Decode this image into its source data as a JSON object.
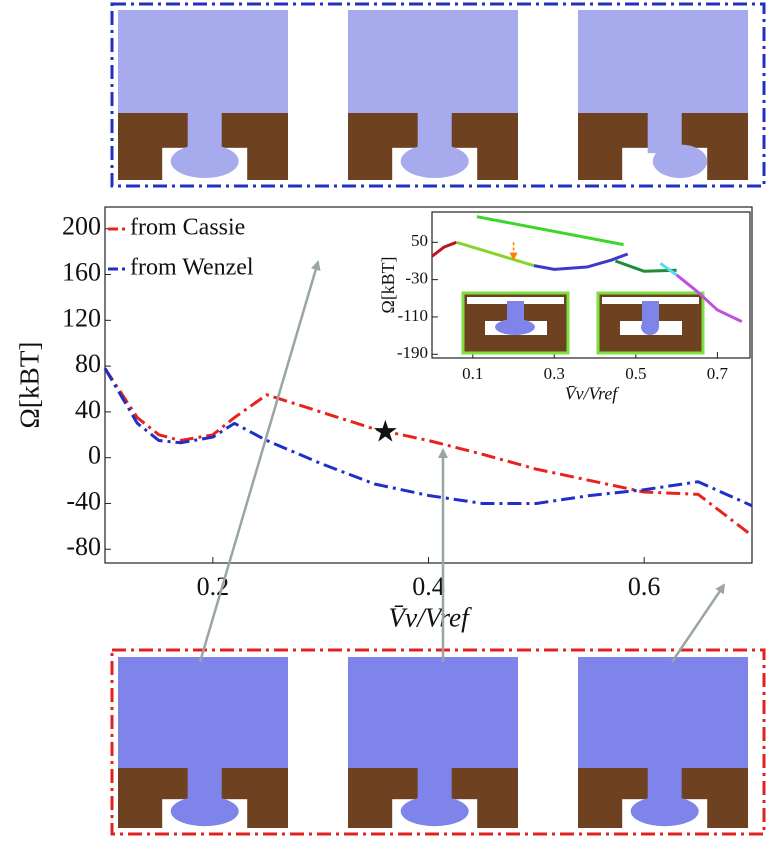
{
  "chart_data": [
    {
      "type": "line",
      "x_label": "V̄v/Vref",
      "y_label": "Ω[kBT]",
      "xlim": [
        0.1,
        0.7
      ],
      "ylim": [
        -92,
        219
      ],
      "xticks": [
        0.2,
        0.4,
        0.6
      ],
      "yticks": [
        -80,
        -40,
        0,
        40,
        80,
        120,
        160,
        200
      ],
      "legend": "upper left",
      "linestyle": "dashdot",
      "x": [
        0.1,
        0.13,
        0.15,
        0.17,
        0.2,
        0.22,
        0.25,
        0.3,
        0.35,
        0.4,
        0.45,
        0.5,
        0.55,
        0.6,
        0.65,
        0.7
      ],
      "series": [
        {
          "name": "from Cassie",
          "color": "#e8231e",
          "values": [
            78,
            35,
            20,
            15,
            20,
            35,
            55,
            40,
            25,
            15,
            3,
            -10,
            -20,
            -30,
            -32,
            -68
          ]
        },
        {
          "name": "from Wenzel",
          "color": "#1f2fc8",
          "values": [
            78,
            30,
            15,
            13,
            18,
            30,
            15,
            -5,
            -23,
            -33,
            -40,
            -40,
            -33,
            -28,
            -21,
            -42
          ]
        }
      ],
      "marker": {
        "x": 0.36,
        "y": 20,
        "symbol": "★",
        "color": "#111111"
      }
    },
    {
      "type": "line",
      "x_label": "V̄v/Vref",
      "y_label": "Ω[kBT]",
      "xlim": [
        0.0,
        0.78
      ],
      "ylim": [
        -198,
        115
      ],
      "xticks": [
        0.1,
        0.3,
        0.5,
        0.7
      ],
      "yticks": [
        -190,
        -110,
        -30,
        50
      ],
      "series": [
        {
          "color": "#c0141c",
          "x": [
            0.0,
            0.03,
            0.06
          ],
          "values": [
            20,
            40,
            50
          ]
        },
        {
          "color": "#3dd62a",
          "x": [
            0.11,
            0.47
          ],
          "values": [
            105,
            45
          ]
        },
        {
          "color": "#86d62a",
          "x": [
            0.06,
            0.25
          ],
          "values": [
            50,
            0
          ]
        },
        {
          "color": "#3a3ad0",
          "x": [
            0.25,
            0.3,
            0.38,
            0.44,
            0.48
          ],
          "values": [
            0,
            -8,
            -3,
            12,
            25
          ]
        },
        {
          "color": "#1e8c3a",
          "x": [
            0.45,
            0.52,
            0.6
          ],
          "values": [
            10,
            -12,
            -10
          ]
        },
        {
          "color": "#4fe0f0",
          "x": [
            0.56,
            0.6
          ],
          "values": [
            5,
            -20
          ]
        },
        {
          "color": "#c050e0",
          "x": [
            0.6,
            0.65,
            0.7,
            0.76
          ],
          "values": [
            -20,
            -55,
            -95,
            -120
          ]
        }
      ],
      "arrow": {
        "x": 0.2,
        "from": 50,
        "to": 15,
        "color": "#ff7f00"
      }
    }
  ]
}
